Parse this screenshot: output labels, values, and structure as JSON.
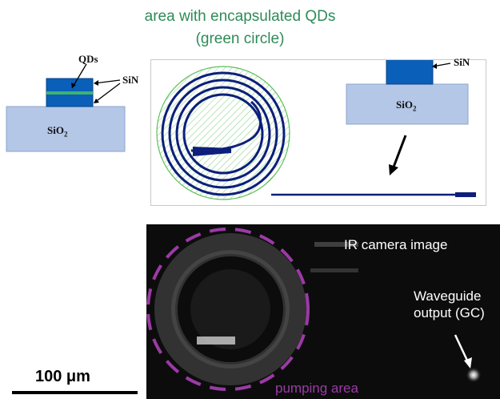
{
  "header": {
    "line1": "area with encapsulated QDs",
    "line2": "(green circle)"
  },
  "left_stack": {
    "qds_label": "QDs",
    "sin_label": "SiN",
    "substrate_main": "SiO",
    "substrate_sub": "2"
  },
  "inset_stack": {
    "sin_label": "SiN",
    "substrate_main": "SiO",
    "substrate_sub": "2"
  },
  "camera": {
    "image_label": "IR camera image",
    "output_line1": "Waveguide",
    "output_line2": "output (GC)",
    "pump_label": "pumping  area"
  },
  "scale_bar": {
    "label": "100 μm"
  },
  "colors": {
    "title_green": "#2e8b57",
    "waveguide_blue": "#0d1f7a",
    "sin_blue": "#0a5fb8",
    "sio2_fill": "#b4c7e7",
    "qd_layer": "#3cb371",
    "pump_purple": "#9b3aa6"
  }
}
